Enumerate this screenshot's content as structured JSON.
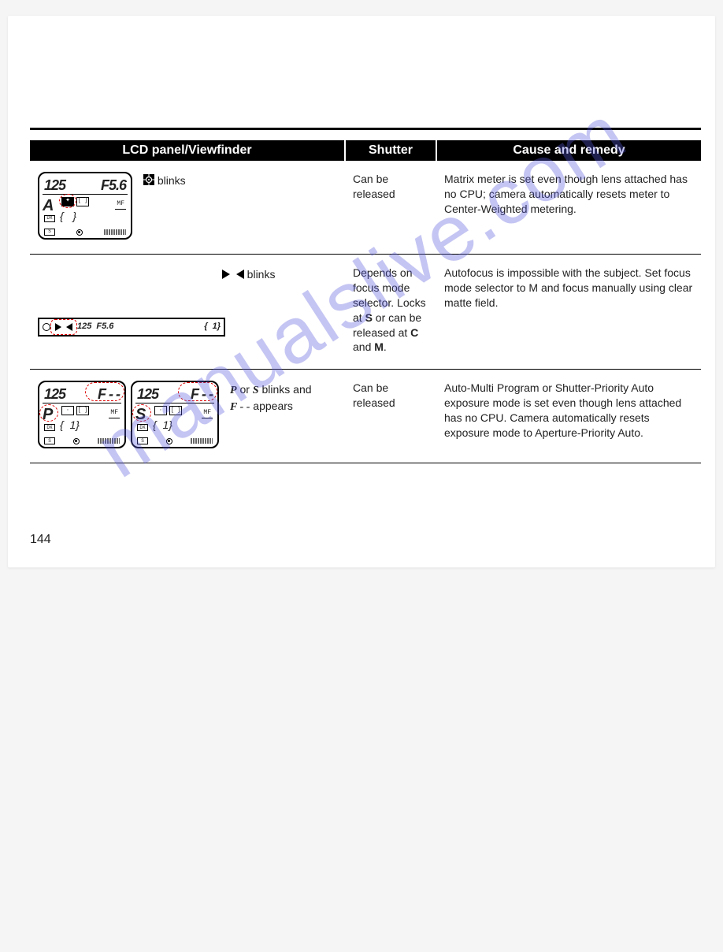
{
  "header": {
    "col1": "LCD panel/Viewfinder",
    "col2": "Shutter",
    "col3": "Cause and remedy"
  },
  "rows": [
    {
      "indicator_html": "<span class='icon-inline'><svg width='14' height='14'><rect x='0' y='0' width='14' height='14' fill='#000'/><circle cx='7' cy='7' r='3.5' fill='none' stroke='#fff' stroke-width='1.3'/><circle cx='7' cy='7' r='1' fill='#fff'/><line x1='7' y1='0' x2='7' y2='3' stroke='#fff' stroke-width='1'/><line x1='7' y1='11' x2='7' y2='14' stroke='#fff' stroke-width='1'/><line x1='0' y1='7' x2='3' y2='7' stroke='#fff' stroke-width='1'/><line x1='11' y1='7' x2='14' y2='7' stroke='#fff' stroke-width='1'/></svg></span> blinks",
      "shutter": "Can be released",
      "remedy": "Matrix meter is set even though lens attached has no CPU; camera automatically resets meter to Center-Weighted metering."
    },
    {
      "indicator_html": "<span class='icon-inline'><svg width='10' height='12'><polygon points='0,0 10,6 0,12' fill='#000'/></svg></span>&nbsp;&nbsp;<span class='icon-inline'><svg width='10' height='12'><polygon points='10,0 0,6 10,12' fill='#000'/></svg></span>&nbsp;blinks",
      "shutter_html": "Depends on focus mode selector. Locks at <span class='bold'>S</span> or can be released at <span class='bold'>C</span> and <span class='bold'>M</span>.",
      "remedy": "Autofocus is impossible with the subject. Set focus mode selector to M and focus manually using clear matte field."
    },
    {
      "indicator_html": "<span class='mono-ital'>P</span> or <span class='mono-ital'>S</span> blinks and<br><span class='mono-ital'>F - -</span> appears",
      "shutter": "Can be released",
      "remedy": "Auto-Multi Program or Shutter-Priority Auto exposure mode is set even though lens attached has no CPU. Camera automatically resets exposure mode to Aperture-Priority Auto."
    }
  ],
  "page_number": "144",
  "watermark": "manualslive.com",
  "colors": {
    "header_bg": "#000000",
    "header_fg": "#ffffff",
    "text": "#222222",
    "red": "#d00000",
    "watermark": "rgba(90,90,220,0.35)"
  }
}
